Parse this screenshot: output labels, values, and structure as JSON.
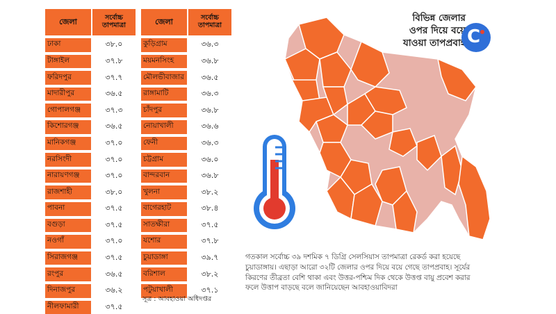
{
  "table": {
    "header_district": "জেলা",
    "header_temp": "সর্বোচ্চ তাপমাত্রা",
    "left_rows": [
      {
        "district": "ঢাকা",
        "temp": "৩৮.০"
      },
      {
        "district": "টাঙ্গাইল",
        "temp": "৩৭.৮"
      },
      {
        "district": "ফরিদপুর",
        "temp": "৩৭.৭"
      },
      {
        "district": "মাদারীপুর",
        "temp": "৩৬.৫"
      },
      {
        "district": "গোপালগঞ্জ",
        "temp": "৩৭.৩"
      },
      {
        "district": "কিশোরগঞ্জ",
        "temp": "৩৬.৫"
      },
      {
        "district": "মানিকগঞ্জ",
        "temp": "৩৭.০"
      },
      {
        "district": "নরসিংদী",
        "temp": "৩৭.০"
      },
      {
        "district": "নারায়ণগঞ্জ",
        "temp": "৩৭.০"
      },
      {
        "district": "রাজশাহী",
        "temp": "৩৮.০"
      },
      {
        "district": "পাবনা",
        "temp": "৩৭.৫"
      },
      {
        "district": "বগুড়া",
        "temp": "৩৭.৫"
      },
      {
        "district": "নওগাঁ",
        "temp": "৩৭.০"
      },
      {
        "district": "সিরাজগঞ্জ",
        "temp": "৩৭.৫"
      },
      {
        "district": "রংপুর",
        "temp": "৩৬.৫"
      },
      {
        "district": "দিনাজপুর",
        "temp": "৩৬.২"
      },
      {
        "district": "নীলফামারী",
        "temp": "৩৭.৫"
      }
    ],
    "right_rows": [
      {
        "district": "কুড়িগ্রাম",
        "temp": "৩৬.৩"
      },
      {
        "district": "ময়মনসিংহ",
        "temp": "৩৬.৮"
      },
      {
        "district": "মৌলভীবাজার",
        "temp": "৩৬.৫"
      },
      {
        "district": "রাঙ্গামাটি",
        "temp": "৩৬.৩"
      },
      {
        "district": "চাঁদপুর",
        "temp": "৩৬.৮"
      },
      {
        "district": "নোয়াখালী",
        "temp": "৩৬.৬"
      },
      {
        "district": "ফেনী",
        "temp": "৩৬.৩"
      },
      {
        "district": "চট্টগ্রাম",
        "temp": "৩৬.০"
      },
      {
        "district": "বান্দরবান",
        "temp": "৩৬.৮"
      },
      {
        "district": "খুলনা",
        "temp": "৩৮.২"
      },
      {
        "district": "বাগেরহাট",
        "temp": "৩৮.৪"
      },
      {
        "district": "সাতক্ষীরা",
        "temp": "৩৭.৫"
      },
      {
        "district": "যশোর",
        "temp": "৩৭.৮"
      },
      {
        "district": "চুয়াডাঙ্গা",
        "temp": "৩৯.৭"
      },
      {
        "district": "বরিশাল",
        "temp": "৩৮.২"
      },
      {
        "district": "পটুয়াখালী",
        "temp": "৩৭.১"
      }
    ]
  },
  "source": "সূত্র : আবহাওয়া অধিদপ্তর",
  "headline": {
    "line1": "বিভিন্ন জেলার",
    "line2": "ওপর দিয়ে বয়ে",
    "line3": "যাওয়া তাপপ্রবাহ"
  },
  "caption": "গতকাল সর্বোচ্চ ৩৯ দশমিক ৭ ডিগ্রি সেলসিয়াস তাপমাত্রা রেকর্ড করা হয়েছে চুয়াডাঙ্গায়। এছাড়া আরো ৩২টি জেলার ওপর দিয়ে বয়ে গেছে তাপপ্রবাহ। সূর্যের কিরণের তীব্রতা বেশি থাকা এবং উত্তর-পশ্চিম দিক থেকে উত্তপ্ত বায়ু প্রবেশ করার ফলে উত্তাপ বাড়ছে বলে জানিয়েছেন আবহাওয়াবিদরা",
  "logo_icon": "brand-c-logo",
  "thermometer_icon": "thermometer-icon",
  "colors": {
    "accent_orange": "#f26b2c",
    "map_light": "#e8b2a9",
    "logo_blue": "#2f6fd8",
    "thermo_red": "#e23b2e",
    "thermo_blue": "#2f7de0"
  }
}
